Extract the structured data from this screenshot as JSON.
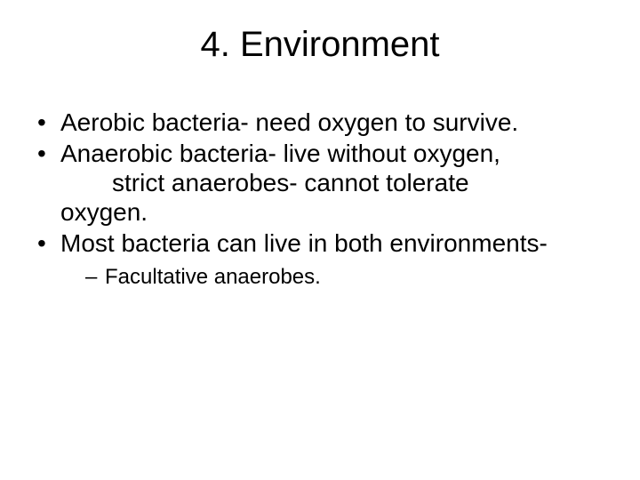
{
  "slide": {
    "title": "4. Environment",
    "bullets": [
      {
        "text": "Aerobic bacteria- need oxygen to survive."
      },
      {
        "text": "Anaerobic bacteria- live without oxygen,",
        "cont1": "strict anaerobes- cannot tolerate",
        "cont2": "oxygen."
      },
      {
        "text": "Most bacteria can live in both environments-",
        "sub": [
          "Facultative anaerobes."
        ]
      }
    ]
  },
  "style": {
    "background_color": "#ffffff",
    "text_color": "#000000",
    "title_fontsize": 40,
    "bullet_fontsize": 28,
    "sub_bullet_fontsize": 24,
    "font_family": "Arial"
  }
}
